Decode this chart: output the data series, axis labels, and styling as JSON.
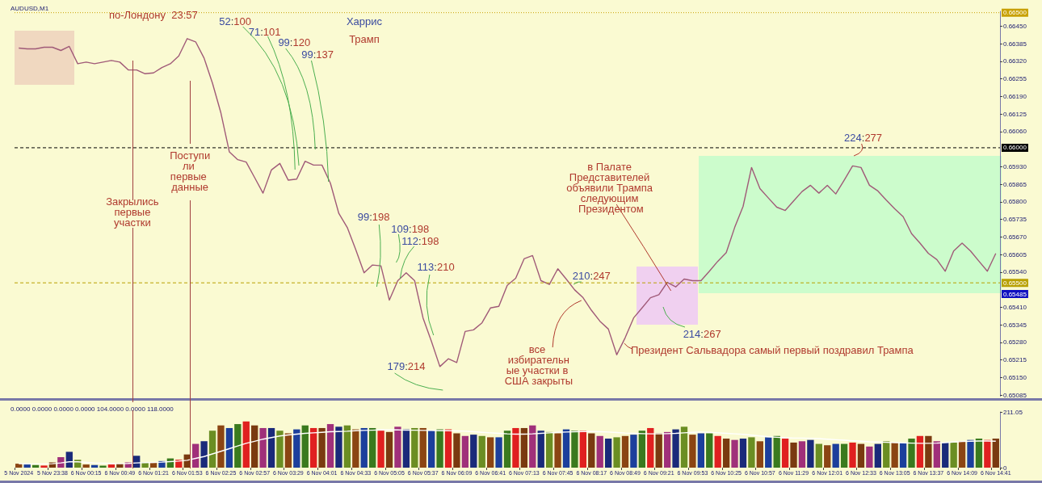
{
  "chart_data": [
    {
      "type": "line",
      "title": "AUDUSD,M1",
      "categories": [
        null,
        null,
        null,
        null,
        null,
        null,
        null,
        null,
        null,
        null,
        null,
        null,
        null,
        null,
        null,
        null,
        null,
        null,
        null,
        null,
        null,
        null,
        null,
        null,
        null,
        null,
        null,
        null,
        null,
        null,
        null,
        null,
        null,
        null,
        null,
        null,
        null,
        null,
        null,
        null,
        null,
        null,
        null,
        null,
        null,
        null,
        null,
        null,
        null,
        null,
        null,
        null,
        null,
        null,
        null,
        null,
        null,
        null,
        null,
        null,
        null,
        null,
        null,
        null,
        null,
        null,
        null,
        null,
        null,
        null,
        null,
        null,
        null,
        null,
        null,
        null,
        null,
        null,
        null,
        null,
        null,
        null,
        null,
        null,
        null,
        null,
        null,
        null,
        null,
        null,
        null,
        null,
        null,
        null,
        null,
        null,
        null,
        null,
        null,
        null,
        null,
        null,
        null,
        null,
        null,
        null,
        null,
        null,
        null,
        null,
        null,
        null,
        null,
        null,
        null,
        null,
        null
      ],
      "series": [
        {
          "color": "#a05a78",
          "values": [
            0.66369,
            0.66366,
            0.66366,
            0.66372,
            0.66372,
            0.6636,
            0.66375,
            0.66311,
            0.66317,
            0.66311,
            0.66317,
            0.66323,
            0.66317,
            0.66288,
            0.66288,
            0.66274,
            0.66277,
            0.66297,
            0.66311,
            0.6634,
            0.66404,
            0.66392,
            0.66332,
            0.66239,
            0.66129,
            0.65985,
            0.65956,
            0.65947,
            0.6589,
            0.65832,
            0.65918,
            0.65942,
            0.6588,
            0.65884,
            0.6595,
            0.65936,
            0.65936,
            0.65869,
            0.65757,
            0.65705,
            0.65624,
            0.65537,
            0.65566,
            0.65563,
            0.65436,
            0.65508,
            0.65537,
            0.65508,
            0.6537,
            0.65283,
            0.6519,
            0.65219,
            0.65205,
            0.6532,
            0.65326,
            0.65352,
            0.65407,
            0.65413,
            0.65491,
            0.65517,
            0.65589,
            0.65601,
            0.65508,
            0.65494,
            0.65552,
            0.65514,
            0.65474,
            0.65445,
            0.65398,
            0.65358,
            0.65329,
            0.65234,
            0.65297,
            0.6537,
            0.65407,
            0.65445,
            0.65456,
            0.65502,
            0.65485,
            0.65514,
            0.65508,
            0.65508,
            0.65543,
            0.6558,
            0.65612,
            0.65705,
            0.65783,
            0.65927,
            0.65849,
            0.65814,
            0.6578,
            0.65768,
            0.65803,
            0.65838,
            0.65861,
            0.65832,
            0.65861,
            0.65829,
            0.6588,
            0.65933,
            0.65927,
            0.65861,
            0.6584,
            0.65806,
            0.65774,
            0.65745,
            0.65682,
            0.65647,
            0.65609,
            0.65586,
            0.65543,
            0.65618,
            0.65647,
            0.65618,
            0.6558,
            0.65543,
            0.65609
          ]
        }
      ],
      "ylim": [
        0.6508,
        0.66505
      ],
      "yticks": [
        0.65085,
        {
          "value": 0.6515,
          "label": "0.65150"
        },
        0.65215,
        {
          "value": 0.6528,
          "label": "0.65280"
        },
        0.65345,
        {
          "value": 0.6541,
          "label": "0.65410"
        },
        {
          "value": 0.6554,
          "label": "0.65540"
        },
        0.65605,
        {
          "value": 0.6567,
          "label": "0.65670"
        },
        0.65735,
        {
          "value": 0.658,
          "label": "0.65800"
        },
        0.65865,
        {
          "value": 0.6593,
          "label": "0.65930"
        },
        {
          "value": 0.6606,
          "label": "0.66060"
        },
        0.66125,
        {
          "value": 0.6619,
          "label": "0.66190"
        },
        0.66255,
        {
          "value": 0.6632,
          "label": "0.66320"
        },
        0.66385,
        {
          "value": 0.6645,
          "label": "0.66450"
        }
      ],
      "tick_labels": "y",
      "ref_lines": [
        {
          "axis": "y",
          "value": 0.665,
          "label": "0.66500",
          "color": "#c8a000",
          "line_style": "dotted"
        },
        {
          "axis": "y",
          "value": 0.66,
          "label": "0.66000",
          "color": "#000000",
          "line_style": "dashed"
        },
        {
          "axis": "y",
          "value": 0.655,
          "label": "0.65500",
          "color": "#b8a000",
          "line_style": "dashed"
        }
      ],
      "annotations": [
        "по-Лондону  23:57",
        "52:100",
        "71:101",
        "99:120",
        "99:137",
        "Харрис",
        "Трамп",
        "Поступили первые данные",
        "Закрылись первые участки",
        "99:198",
        "109:198",
        "112:198",
        "113:210",
        "179:214",
        "210:247",
        "все избирательные участки в США закрыты",
        "в Палате Представителей объявили Трампа следующим Президентом",
        "214:267",
        "Президент Сальвадора самый первый поздравил Трампа",
        "224:277",
        "0.65485"
      ]
    },
    {
      "type": "bar",
      "title": "0.0000 0.0000 0.0000 0.0000 104.0000 0.0000 118.0000",
      "categories": [
        "5 Nov 2024",
        null,
        null,
        null,
        "5 Nov 23:38",
        null,
        null,
        null,
        "6 Nov 00:15",
        null,
        null,
        null,
        "6 Nov 00:49",
        null,
        null,
        null,
        "6 Nov 01:21",
        null,
        null,
        null,
        "6 Nov 01:53",
        null,
        null,
        null,
        "6 Nov 02:25",
        null,
        null,
        null,
        "6 Nov 02:57",
        null,
        null,
        null,
        "6 Nov 03:29",
        null,
        null,
        null,
        "6 Nov 04:01",
        null,
        null,
        null,
        "6 Nov 04:33",
        null,
        null,
        null,
        "6 Nov 05:05",
        null,
        null,
        null,
        "6 Nov 05:37",
        null,
        null,
        null,
        "6 Nov 06:09",
        null,
        null,
        null,
        "6 Nov 06:41",
        null,
        null,
        null,
        "6 Nov 07:13",
        null,
        null,
        null,
        "6 Nov 07:45",
        null,
        null,
        null,
        "6 Nov 08:17",
        null,
        null,
        null,
        "6 Nov 08:49",
        null,
        null,
        null,
        "6 Nov 09:21",
        null,
        null,
        null,
        "6 Nov 09:53",
        null,
        null,
        null,
        "6 Nov 10:25",
        null,
        null,
        null,
        "6 Nov 10:57",
        null,
        null,
        null,
        "6 Nov 11:29",
        null,
        null,
        null,
        "6 Nov 12:01",
        null,
        null,
        null,
        "6 Nov 12:33",
        null,
        null,
        null,
        "6 Nov 13:05",
        null,
        null,
        null,
        "6 Nov 13:37",
        null,
        null,
        null,
        "6 Nov 14:09",
        null,
        null,
        null,
        "6 Nov 14:41"
      ],
      "series": [
        {
          "colors": [
            "#8b4513",
            "#1c3f9c",
            "#3a7a1e",
            "#e02020",
            "#7a3a10",
            "#a0307a",
            "#1a2a7a",
            "#6b8e23",
            "#8b4513",
            "#1c3f9c",
            "#3a7a1e",
            "#e02020",
            "#7a3a10",
            "#a0307a",
            "#1a2a7a",
            "#6b8e23",
            "#8b4513",
            "#1c3f9c",
            "#3a7a1e",
            "#e02020",
            "#7a3a10",
            "#a0307a",
            "#1a2a7a",
            "#6b8e23",
            "#8b4513",
            "#1c3f9c",
            "#3a7a1e",
            "#e02020",
            "#7a3a10",
            "#a0307a",
            "#1a2a7a",
            "#6b8e23",
            "#8b4513",
            "#1c3f9c",
            "#3a7a1e",
            "#e02020",
            "#7a3a10",
            "#a0307a",
            "#1a2a7a",
            "#6b8e23",
            "#8b4513",
            "#1c3f9c",
            "#3a7a1e",
            "#e02020",
            "#7a3a10",
            "#a0307a",
            "#1a2a7a",
            "#6b8e23",
            "#8b4513",
            "#1c3f9c",
            "#3a7a1e",
            "#e02020",
            "#7a3a10",
            "#a0307a",
            "#1a2a7a",
            "#6b8e23",
            "#8b4513",
            "#1c3f9c",
            "#3a7a1e",
            "#e02020",
            "#7a3a10",
            "#a0307a",
            "#1a2a7a",
            "#6b8e23",
            "#8b4513",
            "#1c3f9c",
            "#3a7a1e",
            "#e02020",
            "#7a3a10",
            "#a0307a",
            "#1a2a7a",
            "#6b8e23",
            "#8b4513",
            "#1c3f9c",
            "#3a7a1e",
            "#e02020",
            "#7a3a10",
            "#a0307a",
            "#1a2a7a",
            "#6b8e23",
            "#8b4513",
            "#1c3f9c",
            "#3a7a1e",
            "#e02020",
            "#7a3a10",
            "#a0307a",
            "#1a2a7a",
            "#6b8e23",
            "#8b4513",
            "#1c3f9c",
            "#3a7a1e",
            "#e02020",
            "#7a3a10",
            "#a0307a",
            "#1a2a7a",
            "#6b8e23",
            "#8b4513",
            "#1c3f9c",
            "#3a7a1e",
            "#e02020",
            "#7a3a10",
            "#a0307a",
            "#1a2a7a",
            "#6b8e23",
            "#8b4513",
            "#1c3f9c",
            "#3a7a1e",
            "#e02020",
            "#7a3a10",
            "#a0307a",
            "#1a2a7a",
            "#6b8e23",
            "#8b4513",
            "#1c3f9c",
            "#3a7a1e",
            "#e02020",
            "#7a3a10"
          ],
          "values": [
            15,
            12,
            10,
            8,
            20,
            40,
            60,
            30,
            12,
            10,
            8,
            12,
            15,
            20,
            45,
            20,
            18,
            25,
            35,
            30,
            50,
            90,
            100,
            140,
            160,
            150,
            165,
            175,
            160,
            150,
            150,
            140,
            130,
            145,
            160,
            150,
            150,
            165,
            155,
            160,
            145,
            150,
            150,
            140,
            135,
            155,
            145,
            150,
            150,
            140,
            145,
            145,
            130,
            120,
            125,
            120,
            115,
            115,
            140,
            150,
            150,
            160,
            140,
            135,
            130,
            145,
            140,
            140,
            130,
            120,
            110,
            115,
            120,
            125,
            140,
            150,
            130,
            135,
            145,
            155,
            125,
            130,
            130,
            120,
            110,
            105,
            110,
            115,
            100,
            115,
            120,
            110,
            95,
            100,
            105,
            90,
            85,
            90,
            90,
            95,
            90,
            80,
            90,
            100,
            95,
            95,
            110,
            120,
            120,
            100,
            95,
            95,
            100,
            105,
            110,
            105,
            110
          ]
        },
        {
          "type": "line",
          "color": "#ffffff",
          "values": [
            15,
            15,
            14,
            14,
            15,
            18,
            22,
            22,
            20,
            18,
            17,
            16,
            15,
            16,
            18,
            19,
            20,
            21,
            23,
            25,
            28,
            35,
            42,
            52,
            62,
            72,
            82,
            92,
            100,
            108,
            114,
            120,
            124,
            127,
            130,
            132,
            134,
            136,
            137,
            138,
            140,
            141,
            142,
            143,
            143,
            143,
            142,
            142,
            141,
            141,
            140,
            140,
            139,
            138,
            136,
            134,
            132,
            130,
            128,
            127,
            127,
            128,
            130,
            132,
            134,
            135,
            136,
            137,
            137,
            136,
            135,
            133,
            131,
            130,
            129,
            128,
            128,
            129,
            130,
            132,
            134,
            135,
            134,
            132,
            130,
            128,
            126,
            123,
            120,
            117,
            115,
            113,
            112,
            112,
            111,
            110,
            108,
            106,
            104,
            102,
            100,
            98,
            97,
            96,
            95,
            94,
            93,
            92,
            92,
            93,
            95,
            97,
            99,
            100,
            101,
            101,
            100
          ]
        }
      ],
      "ylim": [
        0,
        211.05
      ],
      "yticks": [
        0,
        211.05
      ]
    }
  ]
}
